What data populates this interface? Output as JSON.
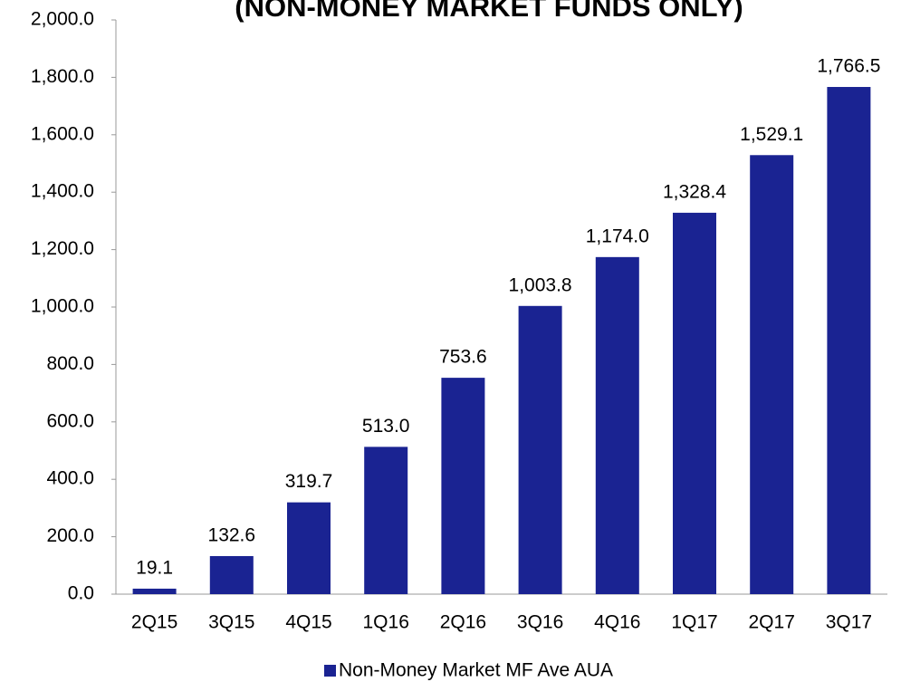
{
  "chart_data": {
    "type": "bar",
    "title": "(NON-MONEY MARKET FUNDS ONLY)",
    "categories": [
      "2Q15",
      "3Q15",
      "4Q15",
      "1Q16",
      "2Q16",
      "3Q16",
      "4Q16",
      "1Q17",
      "2Q17",
      "3Q17"
    ],
    "series": [
      {
        "name": "Non-Money Market MF Ave AUA",
        "color": "#1a2392",
        "values": [
          19.1,
          132.6,
          319.7,
          513.0,
          753.6,
          1003.8,
          1174.0,
          1328.4,
          1529.1,
          1766.5
        ],
        "value_labels": [
          "19.1",
          "132.6",
          "319.7",
          "513.0",
          "753.6",
          "1,003.8",
          "1,174.0",
          "1,328.4",
          "1,529.1",
          "1,766.5"
        ]
      }
    ],
    "ylim": [
      0,
      2000
    ],
    "yticks": [
      {
        "value": 0,
        "label": "0.0"
      },
      {
        "value": 200,
        "label": "200.0"
      },
      {
        "value": 400,
        "label": "400.0"
      },
      {
        "value": 600,
        "label": "600.0"
      },
      {
        "value": 800,
        "label": "800.0"
      },
      {
        "value": 1000,
        "label": "1,000.0"
      },
      {
        "value": 1200,
        "label": "1,200.0"
      },
      {
        "value": 1400,
        "label": "1,400.0"
      },
      {
        "value": 1600,
        "label": "1,600.0"
      },
      {
        "value": 1800,
        "label": "1,800.0"
      },
      {
        "value": 2000,
        "label": "2,000.0"
      }
    ],
    "legend": "bottom",
    "grid": false
  }
}
